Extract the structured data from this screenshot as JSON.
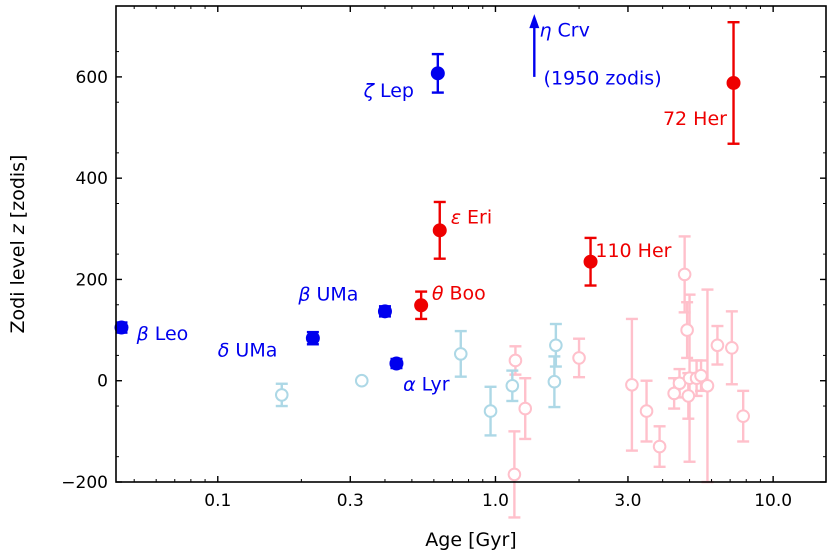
{
  "chart_data": {
    "type": "scatter",
    "title": "",
    "xlabel": "Age [Gyr]",
    "ylabel_prefix": "Zodi level ",
    "ylabel_var": "z",
    "ylabel_suffix": " [zodis]",
    "xscale": "log",
    "xlim": [
      0.043,
      15.5
    ],
    "ylim": [
      -200,
      740
    ],
    "xticks": [
      {
        "value": 0.1,
        "label": "0.1"
      },
      {
        "value": 0.3,
        "label": "0.3"
      },
      {
        "value": 1.0,
        "label": "1.0"
      },
      {
        "value": 3.0,
        "label": "3.0"
      },
      {
        "value": 10.0,
        "label": "10.0"
      }
    ],
    "yticks": [
      {
        "value": -200,
        "label": "−200"
      },
      {
        "value": 0,
        "label": "0"
      },
      {
        "value": 200,
        "label": "200"
      },
      {
        "value": 400,
        "label": "400"
      },
      {
        "value": 600,
        "label": "600"
      }
    ],
    "colors": {
      "blue": "#0000ee",
      "red": "#ee0000",
      "light_blue": "#add8e6",
      "pink": "#ffc0cb"
    },
    "series": [
      {
        "name": "detections-early",
        "color": "blue",
        "filled": true,
        "points": [
          {
            "label": "β Leo",
            "x": 0.045,
            "y": 105,
            "err": 10
          },
          {
            "label": "δ UMa",
            "x": 0.22,
            "y": 84,
            "err": 12
          },
          {
            "label": "β UMa",
            "x": 0.4,
            "y": 137,
            "err": 10
          },
          {
            "label": "α Lyr",
            "x": 0.44,
            "y": 34,
            "err": 9
          },
          {
            "label": "ζ Lep",
            "x": 0.62,
            "y": 607,
            "err": 38
          }
        ]
      },
      {
        "name": "detections-late",
        "color": "red",
        "filled": true,
        "points": [
          {
            "label": "θ Boo",
            "x": 0.54,
            "y": 149,
            "err": 27
          },
          {
            "label": "ε Eri",
            "x": 0.63,
            "y": 297,
            "err": 56
          },
          {
            "label": "110 Her",
            "x": 2.2,
            "y": 235,
            "err": 47
          },
          {
            "label": "72 Her",
            "x": 7.2,
            "y": 588,
            "err": 120
          }
        ]
      },
      {
        "name": "nondetections-early",
        "color": "light_blue",
        "filled": false,
        "points": [
          {
            "x": 0.17,
            "y": -28,
            "err": 22
          },
          {
            "x": 0.33,
            "y": 0,
            "err": 0
          },
          {
            "x": 0.75,
            "y": 53,
            "err": 45
          },
          {
            "x": 0.96,
            "y": -60,
            "err": 48
          },
          {
            "x": 1.15,
            "y": -10,
            "err": 30
          },
          {
            "x": 1.65,
            "y": 70,
            "err": 42
          },
          {
            "x": 1.63,
            "y": -2,
            "err": 50
          }
        ]
      },
      {
        "name": "nondetections-late",
        "color": "pink",
        "filled": false,
        "points": [
          {
            "x": 1.18,
            "y": 40,
            "err": 28
          },
          {
            "x": 1.17,
            "y": -185,
            "err": 85
          },
          {
            "x": 1.28,
            "y": -55,
            "err": 60
          },
          {
            "x": 2.0,
            "y": 45,
            "err": 38
          },
          {
            "x": 3.1,
            "y": -8,
            "err": 130
          },
          {
            "x": 3.5,
            "y": -60,
            "err": 60
          },
          {
            "x": 3.9,
            "y": -130,
            "err": 40
          },
          {
            "x": 4.4,
            "y": -25,
            "err": 30
          },
          {
            "x": 4.6,
            "y": -5,
            "err": 28
          },
          {
            "x": 4.8,
            "y": 210,
            "err": 75
          },
          {
            "x": 4.9,
            "y": 100,
            "err": 55
          },
          {
            "x": 4.95,
            "y": -30,
            "err": 45
          },
          {
            "x": 5.0,
            "y": 5,
            "err": 165
          },
          {
            "x": 5.3,
            "y": 5,
            "err": 35
          },
          {
            "x": 5.5,
            "y": 10,
            "err": 30
          },
          {
            "x": 5.8,
            "y": -10,
            "err": 190
          },
          {
            "x": 6.3,
            "y": 70,
            "err": 38
          },
          {
            "x": 7.1,
            "y": 65,
            "err": 72
          },
          {
            "x": 7.8,
            "y": -70,
            "err": 50
          }
        ]
      }
    ],
    "annotations": [
      {
        "id": "beta-leo",
        "greek": "β",
        "rest": " Leo",
        "color": "blue",
        "x": 0.051,
        "y": 80,
        "anchor": "start"
      },
      {
        "id": "delta-uma",
        "greek": "δ",
        "rest": " UMa",
        "color": "blue",
        "x": 0.1,
        "y": 48,
        "anchor": "start"
      },
      {
        "id": "beta-uma",
        "greek": "β",
        "rest": " UMa",
        "color": "blue",
        "x": 0.195,
        "y": 158,
        "anchor": "start"
      },
      {
        "id": "alpha-lyr",
        "greek": "α",
        "rest": " Lyr",
        "color": "blue",
        "x": 0.465,
        "y": -19,
        "anchor": "start"
      },
      {
        "id": "zeta-lep",
        "greek": "ζ",
        "rest": " Lep",
        "color": "blue",
        "x": 0.335,
        "y": 560,
        "anchor": "start"
      },
      {
        "id": "theta-boo",
        "greek": "θ",
        "rest": " Boo",
        "color": "red",
        "x": 0.59,
        "y": 160,
        "anchor": "start"
      },
      {
        "id": "eps-eri",
        "greek": "ε",
        "rest": " Eri",
        "color": "red",
        "x": 0.69,
        "y": 310,
        "anchor": "start"
      },
      {
        "id": "her-110",
        "greek": "",
        "rest": "110 Her",
        "color": "red",
        "x": 2.29,
        "y": 244,
        "anchor": "start"
      },
      {
        "id": "her-72",
        "greek": "",
        "rest": "72 Her",
        "color": "red",
        "x": 4.01,
        "y": 505,
        "anchor": "start"
      },
      {
        "id": "eta-crv-1",
        "greek": "η",
        "rest": " Crv",
        "color": "blue",
        "x": 1.44,
        "y": 680,
        "anchor": "start"
      },
      {
        "id": "eta-crv-2",
        "greek": "",
        "rest": "(1950 zodis)",
        "color": "blue",
        "x": 1.49,
        "y": 585,
        "anchor": "start"
      }
    ],
    "arrow": {
      "label": "η Crv",
      "color": "blue",
      "x": 1.38,
      "y_from": 600,
      "y_to": 720
    }
  }
}
